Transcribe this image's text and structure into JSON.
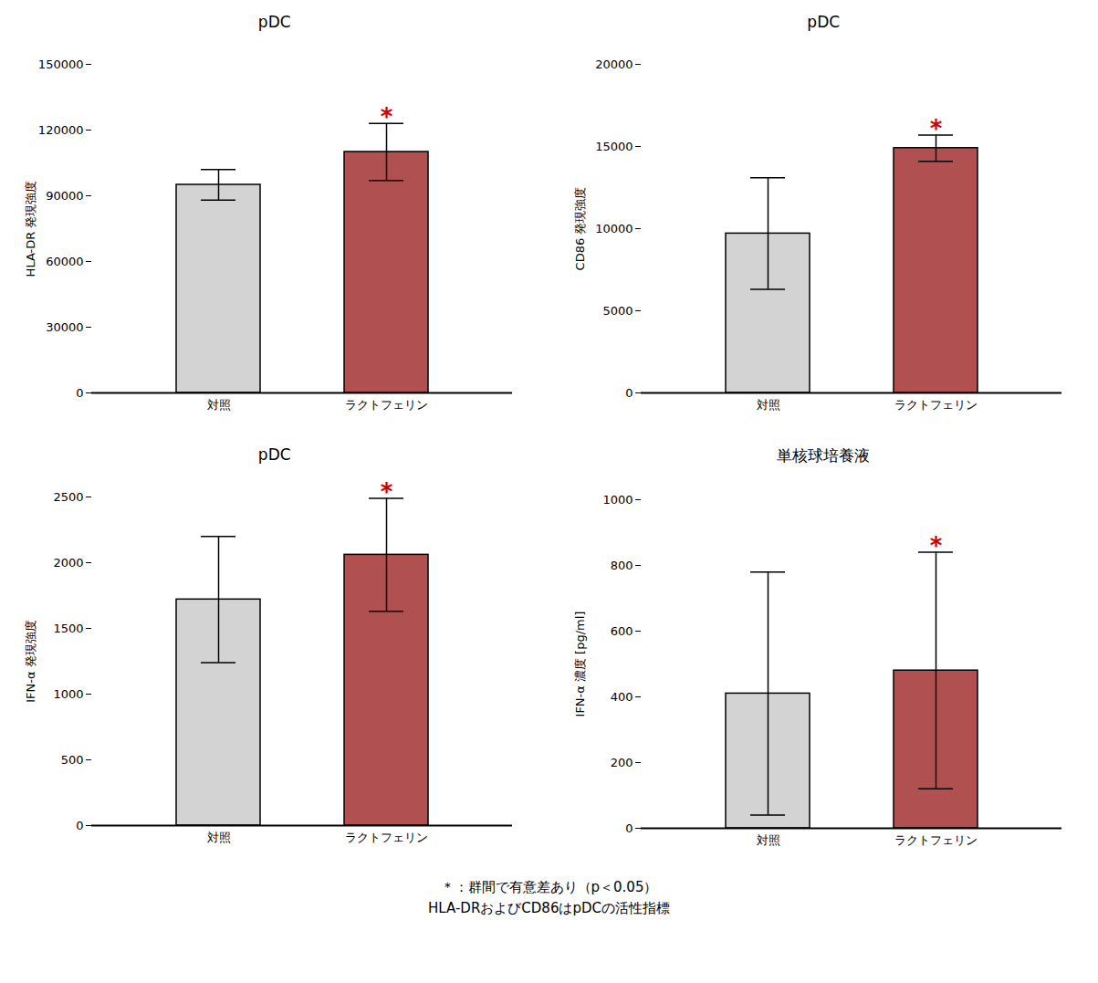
{
  "chart_data": [
    {
      "type": "bar",
      "title": "pDC",
      "ylabel": "HLA-DR 発現強度",
      "categories": [
        "対照",
        "ラクトフェリン"
      ],
      "values": [
        95000,
        110000
      ],
      "errors": [
        7000,
        13000
      ],
      "colors": [
        "#d3d3d3",
        "#b05050"
      ],
      "ylim": [
        0,
        150000
      ],
      "yticks": [
        0,
        30000,
        60000,
        90000,
        120000,
        150000
      ],
      "grid": false,
      "annotations": [
        {
          "text": "*",
          "category": "ラクトフェリン",
          "color": "#cc0000"
        }
      ]
    },
    {
      "type": "bar",
      "title": "pDC",
      "ylabel": "CD86 発現強度",
      "categories": [
        "対照",
        "ラクトフェリン"
      ],
      "values": [
        9700,
        14900
      ],
      "errors": [
        3400,
        800
      ],
      "colors": [
        "#d3d3d3",
        "#b05050"
      ],
      "ylim": [
        0,
        20000
      ],
      "yticks": [
        0,
        5000,
        10000,
        15000,
        20000
      ],
      "grid": false,
      "annotations": [
        {
          "text": "*",
          "category": "ラクトフェリン",
          "color": "#cc0000"
        }
      ]
    },
    {
      "type": "bar",
      "title": "pDC",
      "ylabel": "IFN-α 発現強度",
      "categories": [
        "対照",
        "ラクトフェリン"
      ],
      "values": [
        1720,
        2060
      ],
      "errors": [
        480,
        430
      ],
      "colors": [
        "#d3d3d3",
        "#b05050"
      ],
      "ylim": [
        0,
        2500
      ],
      "yticks": [
        0,
        500,
        1000,
        1500,
        2000,
        2500
      ],
      "grid": false,
      "annotations": [
        {
          "text": "*",
          "category": "ラクトフェリン",
          "color": "#cc0000"
        }
      ]
    },
    {
      "type": "bar",
      "title": "単核球培養液",
      "ylabel": "IFN-α 濃度 [pg/ml]",
      "categories": [
        "対照",
        "ラクトフェリン"
      ],
      "values": [
        410,
        480
      ],
      "errors": [
        370,
        360
      ],
      "colors": [
        "#d3d3d3",
        "#b05050"
      ],
      "ylim": [
        0,
        1000
      ],
      "yticks": [
        0,
        200,
        400,
        600,
        800,
        1000
      ],
      "grid": false,
      "annotations": [
        {
          "text": "*",
          "category": "ラクトフェリン",
          "color": "#cc0000"
        }
      ]
    }
  ],
  "annotations": [
    "＊：群間で有意差あり（p＜0.05）",
    "HLA-DRおよびCD86はpDCの活性指標"
  ]
}
